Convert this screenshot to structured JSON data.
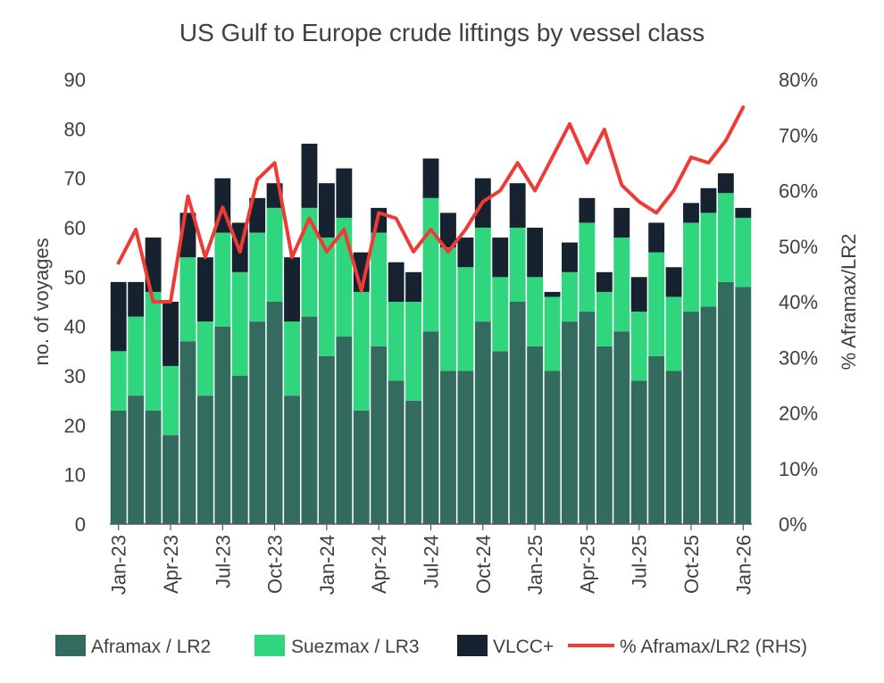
{
  "chart_data": {
    "type": "bar",
    "stacked": true,
    "title": "US Gulf to Europe crude liftings by vessel class",
    "ylabel": "no. of voyages",
    "y2label": "% Aframax/LR2",
    "ylim": [
      0,
      90
    ],
    "y2lim": [
      0,
      80
    ],
    "y_ticks": [
      "0",
      "10",
      "20",
      "30",
      "40",
      "50",
      "60",
      "70",
      "80",
      "90"
    ],
    "y2_ticks": [
      "0%",
      "10%",
      "20%",
      "30%",
      "40%",
      "50%",
      "60%",
      "70%",
      "80%"
    ],
    "categories": [
      "Jan-23",
      "Feb-23",
      "Mar-23",
      "Apr-23",
      "May-23",
      "Jun-23",
      "Jul-23",
      "Aug-23",
      "Sep-23",
      "Oct-23",
      "Nov-23",
      "Dec-23",
      "Jan-24",
      "Feb-24",
      "Mar-24",
      "Apr-24",
      "May-24",
      "Jun-24",
      "Jul-24",
      "Aug-24",
      "Sep-24",
      "Oct-24",
      "Nov-24",
      "Dec-24",
      "Jan-25",
      "Feb-25",
      "Mar-25",
      "Apr-25",
      "May-25",
      "Jun-25",
      "Jul-25",
      "Aug-25",
      "Sep-25",
      "Oct-25",
      "Nov-25",
      "Dec-25",
      "Jan-26"
    ],
    "x_tick_labels": [
      "Jan-23",
      "Apr-23",
      "Jul-23",
      "Oct-23",
      "Jan-24",
      "Apr-24",
      "Jul-24",
      "Oct-24",
      "Jan-25",
      "Apr-25",
      "Jul-25",
      "Oct-25",
      "Jan-26"
    ],
    "series": [
      {
        "name": "Aframax / LR2",
        "color": "#336B5E",
        "values": [
          23,
          26,
          23,
          18,
          37,
          26,
          40,
          30,
          41,
          45,
          26,
          42,
          34,
          38,
          23,
          36,
          29,
          25,
          39,
          31,
          31,
          41,
          35,
          45,
          36,
          31,
          41,
          43,
          36,
          39,
          29,
          34,
          31,
          43,
          44,
          49,
          48
        ]
      },
      {
        "name": "Suezmax / LR3",
        "color": "#2FD67E",
        "values": [
          12,
          16,
          24,
          14,
          17,
          15,
          19,
          21,
          18,
          19,
          15,
          22,
          24,
          24,
          24,
          23,
          16,
          20,
          27,
          25,
          21,
          19,
          15,
          15,
          14,
          15,
          10,
          18,
          11,
          19,
          14,
          21,
          15,
          18,
          19,
          18,
          14
        ]
      },
      {
        "name": "VLCC+",
        "color": "#16222F",
        "values": [
          14,
          7,
          11,
          13,
          9,
          13,
          11,
          10,
          7,
          5,
          13,
          13,
          11,
          10,
          8,
          5,
          8,
          6,
          8,
          7,
          6,
          10,
          8,
          9,
          10,
          1,
          6,
          5,
          4,
          6,
          7,
          6,
          6,
          4,
          5,
          4,
          2
        ]
      }
    ],
    "line_series": {
      "name": "% Aframax/LR2 (RHS)",
      "axis": "right",
      "color": "#EF3B36",
      "values": [
        47,
        53,
        40,
        40,
        59,
        48,
        57,
        49,
        62,
        65,
        48,
        55,
        49,
        53,
        42,
        56,
        55,
        49,
        53,
        49,
        53,
        58,
        60,
        65,
        60,
        66,
        72,
        65,
        71,
        61,
        58,
        56,
        60,
        66,
        65,
        69,
        75
      ]
    },
    "legend": [
      "Aframax / LR2",
      "Suezmax / LR3",
      "VLCC+",
      "% Aframax/LR2 (RHS)"
    ],
    "legend_position": "bottom",
    "grid": false
  }
}
